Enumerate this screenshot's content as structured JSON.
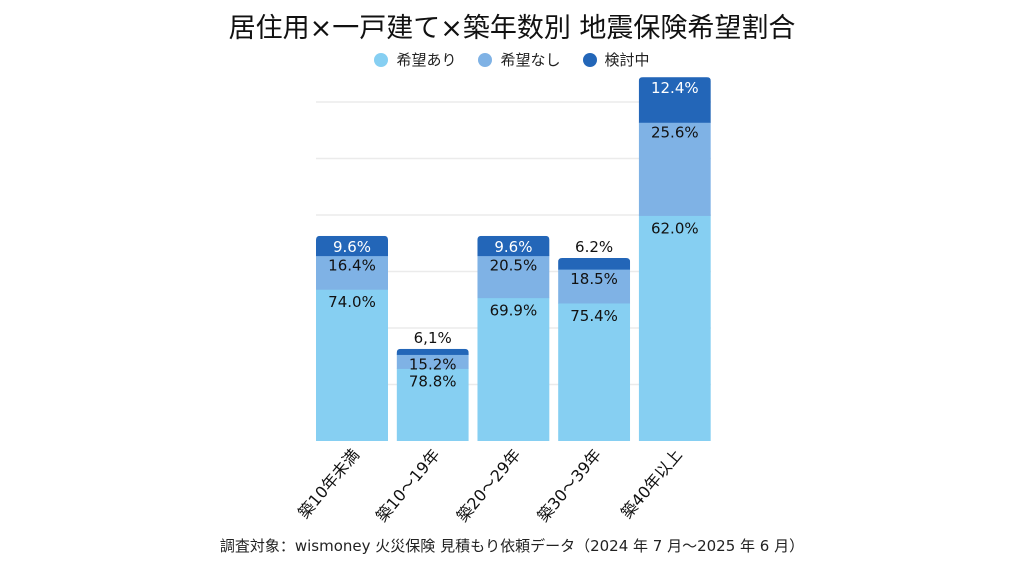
{
  "chart_data": {
    "type": "bar",
    "stacked": true,
    "title": "居住用×一戸建て×築年数別 地震保険希望割合",
    "categories": [
      "築10年未満",
      "築10〜19年",
      "築20〜29年",
      "築30〜39年",
      "築40年以上"
    ],
    "series": [
      {
        "name": "希望あり",
        "color": "#86cff2",
        "values": [
          74.0,
          78.8,
          69.9,
          75.4,
          62.0
        ],
        "labels": [
          "74.0%",
          "78.8%",
          "69.9%",
          "75.4%",
          "62.0%"
        ]
      },
      {
        "name": "希望なし",
        "color": "#7fb2e5",
        "values": [
          16.4,
          15.2,
          20.5,
          18.5,
          25.6
        ],
        "labels": [
          "16.4%",
          "15.2%",
          "20.5%",
          "18.5%",
          "25.6%"
        ]
      },
      {
        "name": "検討中",
        "color": "#2366b8",
        "values": [
          9.6,
          6.1,
          9.6,
          6.2,
          12.4
        ],
        "labels": [
          "9.6%",
          "6,1%",
          "9.6%",
          "6.2%",
          "12.4%"
        ]
      }
    ],
    "bar_relative_totals": [
      3.63,
      1.63,
      3.63,
      3.24,
      6.44
    ],
    "gridlines": true,
    "legend_position": "top",
    "yaxis_labels_shown": false,
    "note": "調査対象：wismoney 火災保険 見積もり依頼データ（2024 年 7 月〜2025 年 6 月）"
  }
}
